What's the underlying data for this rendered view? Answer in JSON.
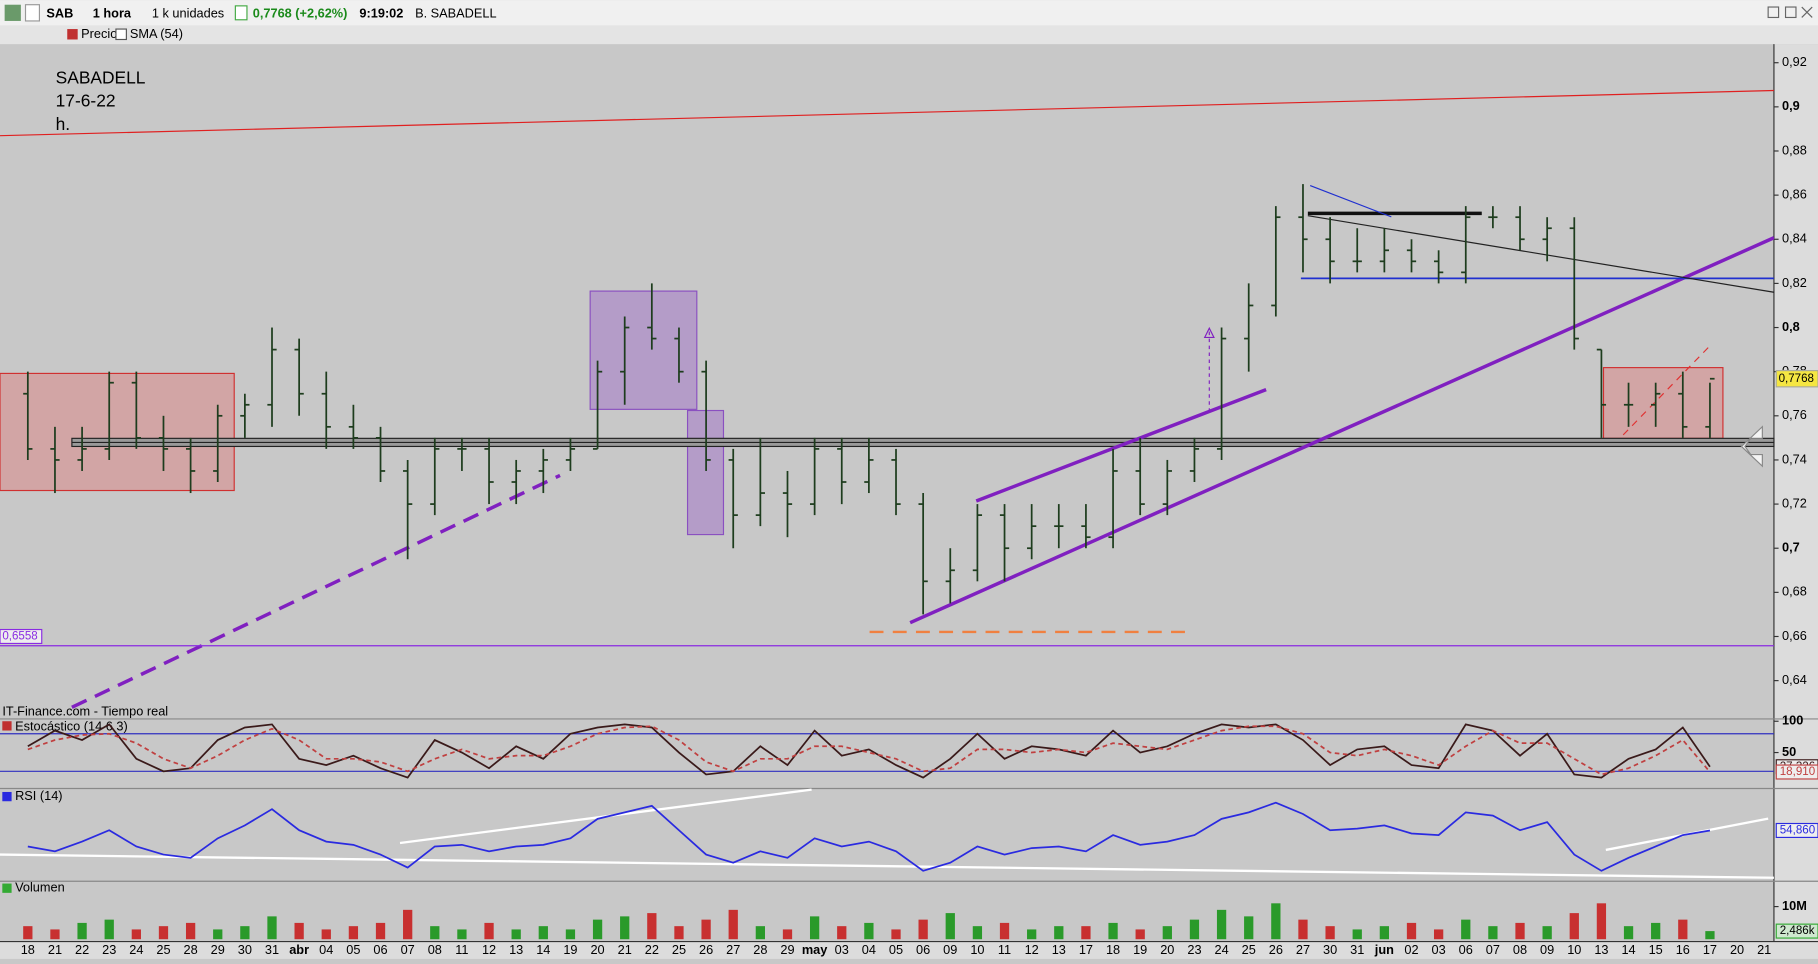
{
  "toolbar": {
    "symbol": "SAB",
    "interval": "1 hora",
    "units": "1 k unidades",
    "price_change": "0,7768 (+2,62%)",
    "time": "9:19:02",
    "name": "B. SABADELL"
  },
  "indicator_bar": {
    "price": "Precio",
    "sma": "SMA (54)"
  },
  "source": "IT-Finance.com - Tiempo real",
  "chart_data": [
    {
      "type": "ohlc",
      "annotation": [
        "SABADELL",
        "17-6-22",
        "h."
      ],
      "color": "#1e3d1e",
      "categories": [
        "18",
        "21",
        "22",
        "23",
        "24",
        "25",
        "28",
        "29",
        "30",
        "31",
        "abr",
        "04",
        "05",
        "06",
        "07",
        "08",
        "11",
        "12",
        "13",
        "14",
        "19",
        "20",
        "21",
        "22",
        "25",
        "26",
        "27",
        "28",
        "29",
        "may",
        "03",
        "04",
        "05",
        "06",
        "09",
        "10",
        "11",
        "12",
        "13",
        "17",
        "18",
        "19",
        "20",
        "23",
        "24",
        "25",
        "26",
        "27",
        "30",
        "31",
        "jun",
        "02",
        "03",
        "06",
        "07",
        "08",
        "09",
        "10",
        "13",
        "14",
        "15",
        "16",
        "17",
        "20",
        "21"
      ],
      "open": [
        0.77,
        0.745,
        0.74,
        0.745,
        0.775,
        0.75,
        0.745,
        0.735,
        0.76,
        0.765,
        0.79,
        0.77,
        0.755,
        0.75,
        0.735,
        0.72,
        0.745,
        0.745,
        0.73,
        0.735,
        0.74,
        0.745,
        0.78,
        0.8,
        0.795,
        0.78,
        0.74,
        0.715,
        0.725,
        0.72,
        0.745,
        0.73,
        0.74,
        0.72,
        0.685,
        0.69,
        0.715,
        0.7,
        0.71,
        0.71,
        0.705,
        0.735,
        0.72,
        0.735,
        0.745,
        0.795,
        0.81,
        0.85,
        0.84,
        0.83,
        0.83,
        0.835,
        0.83,
        0.825,
        0.85,
        0.85,
        0.84,
        0.845,
        0.79,
        0.765,
        0.765,
        0.77,
        0.755,
        null,
        null
      ],
      "high": [
        0.78,
        0.755,
        0.755,
        0.78,
        0.78,
        0.76,
        0.75,
        0.765,
        0.77,
        0.8,
        0.795,
        0.78,
        0.765,
        0.755,
        0.74,
        0.75,
        0.75,
        0.75,
        0.74,
        0.745,
        0.75,
        0.785,
        0.805,
        0.82,
        0.8,
        0.785,
        0.745,
        0.75,
        0.735,
        0.75,
        0.75,
        0.75,
        0.745,
        0.725,
        0.7,
        0.72,
        0.72,
        0.72,
        0.72,
        0.72,
        0.745,
        0.75,
        0.74,
        0.75,
        0.8,
        0.82,
        0.855,
        0.865,
        0.85,
        0.845,
        0.845,
        0.84,
        0.835,
        0.855,
        0.855,
        0.855,
        0.85,
        0.85,
        0.79,
        0.775,
        0.775,
        0.78,
        0.775,
        null,
        null
      ],
      "low": [
        0.74,
        0.725,
        0.735,
        0.74,
        0.745,
        0.735,
        0.725,
        0.73,
        0.75,
        0.755,
        0.76,
        0.745,
        0.745,
        0.73,
        0.695,
        0.715,
        0.735,
        0.72,
        0.72,
        0.725,
        0.735,
        0.745,
        0.765,
        0.79,
        0.775,
        0.735,
        0.7,
        0.71,
        0.705,
        0.715,
        0.72,
        0.725,
        0.715,
        0.67,
        0.675,
        0.685,
        0.685,
        0.695,
        0.7,
        0.7,
        0.7,
        0.715,
        0.715,
        0.73,
        0.74,
        0.78,
        0.805,
        0.825,
        0.82,
        0.825,
        0.825,
        0.825,
        0.82,
        0.82,
        0.845,
        0.835,
        0.83,
        0.79,
        0.75,
        0.755,
        0.755,
        0.75,
        0.75,
        null,
        null
      ],
      "close": [
        0.745,
        0.74,
        0.745,
        0.775,
        0.75,
        0.745,
        0.735,
        0.76,
        0.765,
        0.79,
        0.77,
        0.755,
        0.75,
        0.735,
        0.72,
        0.745,
        0.745,
        0.73,
        0.735,
        0.74,
        0.745,
        0.78,
        0.8,
        0.795,
        0.78,
        0.74,
        0.715,
        0.725,
        0.72,
        0.745,
        0.73,
        0.74,
        0.72,
        0.685,
        0.69,
        0.715,
        0.7,
        0.71,
        0.71,
        0.705,
        0.735,
        0.72,
        0.735,
        0.745,
        0.795,
        0.81,
        0.85,
        0.84,
        0.83,
        0.83,
        0.835,
        0.83,
        0.825,
        0.85,
        0.85,
        0.84,
        0.845,
        0.795,
        0.765,
        0.765,
        0.77,
        0.755,
        0.7768,
        null,
        null
      ],
      "ylim": [
        0.63,
        0.93
      ],
      "yticks": [
        {
          "value": 0.64,
          "label": "0,64"
        },
        {
          "value": 0.66,
          "label": "0,66"
        },
        {
          "value": 0.68,
          "label": "0,68"
        },
        {
          "value": 0.7,
          "label": "0,7"
        },
        {
          "value": 0.72,
          "label": "0,72"
        },
        {
          "value": 0.74,
          "label": "0,74"
        },
        {
          "value": 0.76,
          "label": "0,76"
        },
        {
          "value": 0.78,
          "label": "0,78"
        },
        {
          "value": 0.8,
          "label": "0,8"
        },
        {
          "value": 0.82,
          "label": "0,82"
        },
        {
          "value": 0.84,
          "label": "0,84"
        },
        {
          "value": 0.86,
          "label": "0,86"
        },
        {
          "value": 0.88,
          "label": "0,88"
        },
        {
          "value": 0.9,
          "label": "0,9"
        },
        {
          "value": 0.92,
          "label": "0,92"
        }
      ],
      "last": {
        "value": 0.7768,
        "label": "0,7768"
      },
      "level": {
        "value": 0.6558,
        "label": "0,6558",
        "color": "#8a2be2"
      }
    },
    {
      "type": "line",
      "title": "Estocástico (14 6 3)",
      "ylim": [
        0,
        100
      ],
      "yticks": [
        100,
        50
      ],
      "levels": [
        20,
        80
      ],
      "series": [
        {
          "color": "#3a1a1a",
          "values": [
            60,
            85,
            70,
            95,
            40,
            20,
            25,
            70,
            90,
            95,
            40,
            30,
            45,
            25,
            10,
            70,
            50,
            25,
            60,
            40,
            80,
            90,
            95,
            90,
            50,
            15,
            20,
            60,
            30,
            85,
            45,
            55,
            30,
            10,
            40,
            80,
            40,
            60,
            55,
            45,
            85,
            50,
            60,
            80,
            95,
            90,
            95,
            70,
            30,
            55,
            60,
            30,
            25,
            95,
            85,
            45,
            80,
            15,
            10,
            40,
            55,
            90,
            27.326,
            null,
            null
          ],
          "value_label": "27,326"
        },
        {
          "color": "#c04040",
          "values": [
            55,
            70,
            78,
            80,
            65,
            40,
            25,
            45,
            70,
            88,
            70,
            40,
            40,
            35,
            20,
            40,
            55,
            40,
            45,
            45,
            60,
            80,
            90,
            92,
            70,
            35,
            20,
            40,
            40,
            60,
            60,
            50,
            40,
            20,
            25,
            55,
            55,
            50,
            55,
            50,
            65,
            60,
            55,
            70,
            85,
            92,
            92,
            80,
            50,
            45,
            55,
            45,
            30,
            60,
            85,
            65,
            65,
            40,
            15,
            25,
            45,
            70,
            18.91,
            null,
            null
          ],
          "value_label": "18,910"
        }
      ]
    },
    {
      "type": "line",
      "title": "RSI (14)",
      "ylim": [
        25,
        75
      ],
      "series": [
        {
          "color": "#2a2ae0",
          "values": [
            45,
            42,
            48,
            55,
            45,
            40,
            38,
            50,
            58,
            68,
            55,
            48,
            46,
            40,
            32,
            45,
            46,
            42,
            45,
            46,
            50,
            62,
            66,
            70,
            55,
            40,
            35,
            42,
            38,
            50,
            45,
            48,
            42,
            30,
            35,
            45,
            40,
            44,
            45,
            42,
            52,
            46,
            48,
            52,
            62,
            66,
            72,
            65,
            55,
            56,
            58,
            53,
            52,
            66,
            64,
            55,
            60,
            40,
            30,
            38,
            45,
            52,
            54.86,
            null,
            null
          ],
          "value_label": "54,860"
        }
      ]
    },
    {
      "type": "bar",
      "title": "Volumen",
      "ylim": [
        0,
        13.5
      ],
      "yticks": [
        {
          "value": 10,
          "label": "10M"
        }
      ],
      "values": [
        4,
        3,
        5,
        6,
        3,
        4,
        5,
        3,
        4,
        7,
        5,
        3,
        4,
        5,
        9,
        4,
        3,
        5,
        3,
        4,
        3,
        6,
        7,
        8,
        4,
        6,
        9,
        4,
        3,
        7,
        4,
        5,
        3,
        6,
        8,
        4,
        5,
        3,
        4,
        4,
        5,
        3,
        4,
        6,
        9,
        7,
        11,
        6,
        4,
        3,
        4,
        5,
        3,
        6,
        4,
        5,
        4,
        8,
        11,
        4,
        5,
        6,
        2.486,
        null,
        null
      ],
      "last": {
        "value": 2.486,
        "label": "2,486k"
      }
    }
  ]
}
